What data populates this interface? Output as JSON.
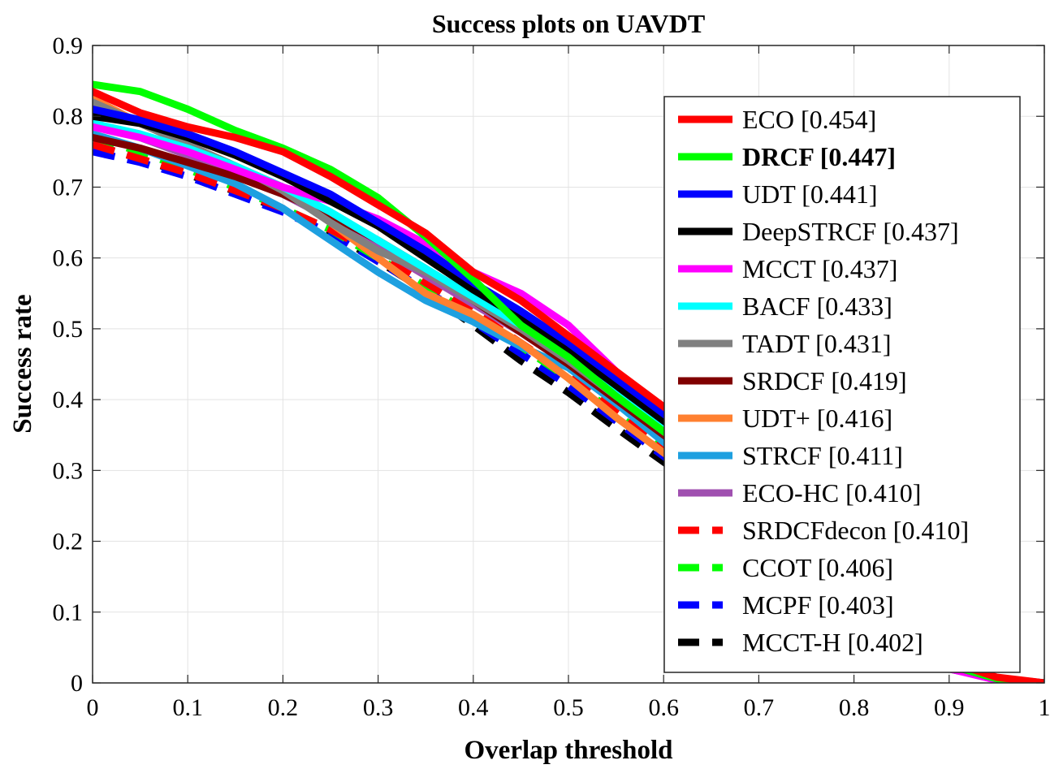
{
  "chart_data": {
    "type": "line",
    "title": "Success plots on UAVDT",
    "xlabel": "Overlap threshold",
    "ylabel": "Success rate",
    "xlim": [
      0,
      1
    ],
    "ylim": [
      0,
      0.9
    ],
    "xticks": [
      "0",
      "0.1",
      "0.2",
      "0.3",
      "0.4",
      "0.5",
      "0.6",
      "0.7",
      "0.8",
      "0.9",
      "1"
    ],
    "yticks": [
      "0",
      "0.1",
      "0.2",
      "0.3",
      "0.4",
      "0.5",
      "0.6",
      "0.7",
      "0.8",
      "0.9"
    ],
    "grid": true,
    "legend_position": "right",
    "x": [
      0,
      0.05,
      0.1,
      0.15,
      0.2,
      0.25,
      0.3,
      0.35,
      0.4,
      0.45,
      0.5,
      0.55,
      0.6,
      0.65,
      0.7,
      0.75,
      0.8,
      0.85,
      0.9,
      0.95,
      1.0
    ],
    "series": [
      {
        "name": "ECO [0.454]",
        "color": "#ff0000",
        "dash": false,
        "bold": false,
        "values": [
          0.835,
          0.805,
          0.785,
          0.77,
          0.75,
          0.715,
          0.675,
          0.635,
          0.58,
          0.54,
          0.49,
          0.44,
          0.39,
          0.34,
          0.285,
          0.225,
          0.16,
          0.09,
          0.03,
          0.008,
          0.0
        ]
      },
      {
        "name": "DRCF [0.447]",
        "color": "#00ff00",
        "dash": false,
        "bold": true,
        "values": [
          0.845,
          0.835,
          0.81,
          0.78,
          0.755,
          0.725,
          0.685,
          0.63,
          0.57,
          0.505,
          0.46,
          0.405,
          0.355,
          0.31,
          0.26,
          0.205,
          0.145,
          0.08,
          0.025,
          0.006,
          0.0
        ]
      },
      {
        "name": "UDT [0.441]",
        "color": "#0000ff",
        "dash": false,
        "bold": false,
        "values": [
          0.81,
          0.795,
          0.775,
          0.75,
          0.72,
          0.69,
          0.65,
          0.61,
          0.565,
          0.525,
          0.48,
          0.43,
          0.38,
          0.33,
          0.275,
          0.215,
          0.15,
          0.085,
          0.028,
          0.007,
          0.0
        ]
      },
      {
        "name": "DeepSTRCF [0.437]",
        "color": "#000000",
        "dash": false,
        "bold": false,
        "values": [
          0.8,
          0.79,
          0.77,
          0.745,
          0.715,
          0.68,
          0.645,
          0.6,
          0.555,
          0.515,
          0.47,
          0.42,
          0.37,
          0.32,
          0.265,
          0.21,
          0.145,
          0.08,
          0.025,
          0.006,
          0.0
        ]
      },
      {
        "name": "MCCT [0.437]",
        "color": "#ff00ff",
        "dash": false,
        "bold": false,
        "values": [
          0.785,
          0.77,
          0.75,
          0.725,
          0.7,
          0.68,
          0.655,
          0.62,
          0.58,
          0.55,
          0.505,
          0.44,
          0.375,
          0.315,
          0.255,
          0.195,
          0.13,
          0.07,
          0.02,
          0.004,
          0.0
        ]
      },
      {
        "name": "BACF [0.433]",
        "color": "#00ffff",
        "dash": false,
        "bold": false,
        "values": [
          0.79,
          0.775,
          0.755,
          0.73,
          0.7,
          0.665,
          0.625,
          0.585,
          0.545,
          0.505,
          0.46,
          0.41,
          0.36,
          0.31,
          0.255,
          0.2,
          0.14,
          0.075,
          0.025,
          0.006,
          0.0
        ]
      },
      {
        "name": "TADT [0.431]",
        "color": "#808080",
        "dash": false,
        "bold": false,
        "values": [
          0.82,
          0.79,
          0.76,
          0.73,
          0.695,
          0.65,
          0.61,
          0.58,
          0.54,
          0.5,
          0.455,
          0.405,
          0.355,
          0.305,
          0.25,
          0.195,
          0.135,
          0.075,
          0.024,
          0.006,
          0.0
        ]
      },
      {
        "name": "SRDCF [0.419]",
        "color": "#800000",
        "dash": false,
        "bold": false,
        "values": [
          0.77,
          0.755,
          0.735,
          0.715,
          0.69,
          0.66,
          0.625,
          0.585,
          0.54,
          0.495,
          0.45,
          0.4,
          0.35,
          0.3,
          0.245,
          0.19,
          0.13,
          0.07,
          0.022,
          0.005,
          0.0
        ]
      },
      {
        "name": "UDT+ [0.416]",
        "color": "#ff8030",
        "dash": false,
        "bold": false,
        "values": [
          0.825,
          0.79,
          0.76,
          0.73,
          0.7,
          0.65,
          0.6,
          0.55,
          0.52,
          0.48,
          0.43,
          0.375,
          0.325,
          0.28,
          0.23,
          0.18,
          0.125,
          0.07,
          0.022,
          0.005,
          0.0
        ]
      },
      {
        "name": "STRCF [0.411]",
        "color": "#1ea0e0",
        "dash": false,
        "bold": false,
        "values": [
          0.775,
          0.755,
          0.73,
          0.705,
          0.67,
          0.625,
          0.58,
          0.54,
          0.51,
          0.475,
          0.445,
          0.395,
          0.34,
          0.29,
          0.24,
          0.185,
          0.13,
          0.07,
          0.022,
          0.005,
          0.0
        ]
      },
      {
        "name": "ECO-HC [0.410]",
        "color": "#a050b0",
        "dash": false,
        "bold": false,
        "values": [
          0.79,
          0.77,
          0.745,
          0.72,
          0.69,
          0.655,
          0.615,
          0.575,
          0.535,
          0.495,
          0.45,
          0.4,
          0.35,
          0.3,
          0.245,
          0.19,
          0.13,
          0.07,
          0.022,
          0.005,
          0.0
        ]
      },
      {
        "name": "SRDCFdecon [0.410]",
        "color": "#ff0000",
        "dash": true,
        "bold": false,
        "values": [
          0.76,
          0.74,
          0.72,
          0.695,
          0.67,
          0.64,
          0.605,
          0.565,
          0.525,
          0.48,
          0.435,
          0.385,
          0.335,
          0.285,
          0.235,
          0.18,
          0.125,
          0.068,
          0.021,
          0.005,
          0.0
        ]
      },
      {
        "name": "CCOT [0.406]",
        "color": "#00ff00",
        "dash": true,
        "bold": false,
        "values": [
          0.77,
          0.75,
          0.725,
          0.7,
          0.67,
          0.64,
          0.6,
          0.56,
          0.52,
          0.475,
          0.43,
          0.38,
          0.33,
          0.28,
          0.23,
          0.178,
          0.122,
          0.067,
          0.021,
          0.005,
          0.0
        ]
      },
      {
        "name": "MCPF [0.403]",
        "color": "#0000ff",
        "dash": true,
        "bold": false,
        "values": [
          0.75,
          0.735,
          0.715,
          0.69,
          0.665,
          0.635,
          0.595,
          0.555,
          0.51,
          0.465,
          0.42,
          0.37,
          0.32,
          0.27,
          0.222,
          0.172,
          0.118,
          0.065,
          0.02,
          0.005,
          0.0
        ]
      },
      {
        "name": "MCCT-H [0.402]",
        "color": "#000000",
        "dash": true,
        "bold": false,
        "values": [
          0.76,
          0.74,
          0.718,
          0.694,
          0.668,
          0.636,
          0.596,
          0.553,
          0.505,
          0.455,
          0.41,
          0.36,
          0.312,
          0.265,
          0.218,
          0.17,
          0.116,
          0.064,
          0.02,
          0.005,
          0.0
        ]
      }
    ]
  }
}
